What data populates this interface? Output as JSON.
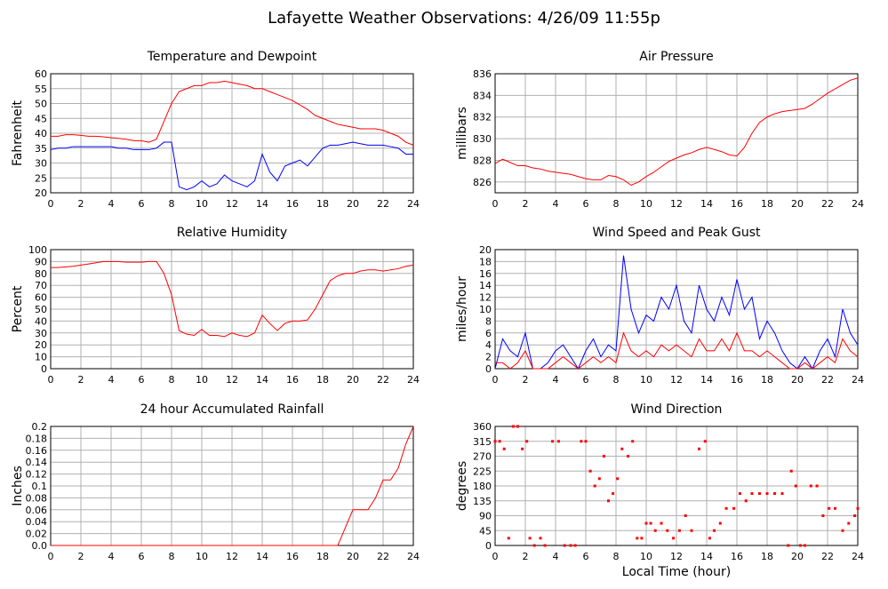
{
  "title": "Lafayette Weather Observations: 4/26/09 11:55p",
  "chart_data": [
    {
      "type": "line",
      "title": "Temperature and Dewpoint",
      "ylabel": "Fahrenheit",
      "x": [
        0,
        0.5,
        1,
        1.5,
        2,
        2.5,
        3,
        3.5,
        4,
        4.5,
        5,
        5.5,
        6,
        6.5,
        7,
        7.5,
        8,
        8.5,
        9,
        9.5,
        10,
        10.5,
        11,
        11.5,
        12,
        12.5,
        13,
        13.5,
        14,
        14.5,
        15,
        15.5,
        16,
        16.5,
        17,
        17.5,
        18,
        18.5,
        19,
        19.5,
        20,
        20.5,
        21,
        21.5,
        22,
        22.5,
        23,
        23.5,
        24
      ],
      "series": [
        {
          "color": "#ff0000",
          "values": [
            39,
            39,
            39.5,
            39.5,
            39.3,
            39,
            39,
            38.8,
            38.5,
            38.3,
            38,
            37.5,
            37.5,
            37,
            38,
            44,
            50,
            54,
            55,
            56,
            56,
            57,
            57,
            57.5,
            57,
            56.5,
            56,
            55,
            55,
            54,
            53,
            52,
            51,
            49.5,
            48,
            46,
            45,
            44,
            43,
            42.5,
            42,
            41.5,
            41.5,
            41.5,
            41,
            40,
            39,
            37,
            36
          ]
        },
        {
          "color": "#0000ff",
          "values": [
            34.5,
            35,
            35,
            35.5,
            35.5,
            35.5,
            35.5,
            35.5,
            35.5,
            35,
            35,
            34.5,
            34.5,
            34.5,
            35,
            37,
            37,
            22,
            21,
            22,
            24,
            22,
            23,
            26,
            24,
            23,
            22,
            24,
            33,
            27,
            24,
            29,
            30,
            31,
            29,
            32,
            35,
            36,
            36,
            36.5,
            37,
            36.5,
            36,
            36,
            36,
            35.5,
            35,
            33,
            33
          ]
        }
      ],
      "xlim": [
        0,
        24
      ],
      "xticks": [
        0,
        2,
        4,
        6,
        8,
        10,
        12,
        14,
        16,
        18,
        20,
        22,
        24
      ],
      "ylim": [
        20,
        60
      ],
      "yticks": [
        20,
        25,
        30,
        35,
        40,
        45,
        50,
        55,
        60
      ],
      "grid": true
    },
    {
      "type": "line",
      "title": "Air Pressure",
      "ylabel": "millibars",
      "x": [
        0,
        0.5,
        1,
        1.5,
        2,
        2.5,
        3,
        3.5,
        4,
        4.5,
        5,
        5.5,
        6,
        6.5,
        7,
        7.5,
        8,
        8.5,
        9,
        9.5,
        10,
        10.5,
        11,
        11.5,
        12,
        12.5,
        13,
        13.5,
        14,
        14.5,
        15,
        15.5,
        16,
        16.5,
        17,
        17.5,
        18,
        18.5,
        19,
        19.5,
        20,
        20.5,
        21,
        21.5,
        22,
        22.5,
        23,
        23.5,
        24
      ],
      "series": [
        {
          "color": "#ff0000",
          "values": [
            827.7,
            828.1,
            827.8,
            827.5,
            827.5,
            827.3,
            827.2,
            827.0,
            826.9,
            826.8,
            826.7,
            826.5,
            826.3,
            826.2,
            826.2,
            826.6,
            826.5,
            826.2,
            825.7,
            826.0,
            826.5,
            826.9,
            827.4,
            827.9,
            828.2,
            828.5,
            828.7,
            829.0,
            829.2,
            829.0,
            828.8,
            828.5,
            828.4,
            829.2,
            830.5,
            831.5,
            832.0,
            832.3,
            832.5,
            832.6,
            832.7,
            832.8,
            833.2,
            833.7,
            834.2,
            834.6,
            835.0,
            835.4,
            835.6
          ]
        }
      ],
      "xlim": [
        0,
        24
      ],
      "xticks": [
        0,
        2,
        4,
        6,
        8,
        10,
        12,
        14,
        16,
        18,
        20,
        22,
        24
      ],
      "ylim": [
        825,
        836
      ],
      "yticks": [
        826,
        828,
        830,
        832,
        834,
        836
      ],
      "grid": true
    },
    {
      "type": "line",
      "title": "Relative Humidity",
      "ylabel": "Percent",
      "x": [
        0,
        0.5,
        1,
        1.5,
        2,
        2.5,
        3,
        3.5,
        4,
        4.5,
        5,
        5.5,
        6,
        6.5,
        7,
        7.5,
        8,
        8.5,
        9,
        9.5,
        10,
        10.5,
        11,
        11.5,
        12,
        12.5,
        13,
        13.5,
        14,
        14.5,
        15,
        15.5,
        16,
        16.5,
        17,
        17.5,
        18,
        18.5,
        19,
        19.5,
        20,
        20.5,
        21,
        21.5,
        22,
        22.5,
        23,
        23.5,
        24
      ],
      "series": [
        {
          "color": "#ff0000",
          "values": [
            85,
            85,
            85.5,
            86,
            87,
            88,
            89,
            90,
            90,
            90,
            89.5,
            89.5,
            89.5,
            90,
            90,
            80,
            62,
            32,
            29,
            28,
            33,
            28,
            28,
            27,
            30,
            28,
            27,
            30,
            45,
            38,
            32,
            38,
            40,
            40,
            41,
            50,
            62,
            74,
            78,
            80,
            80,
            82,
            83,
            83,
            82,
            83,
            84,
            86,
            87
          ]
        }
      ],
      "xlim": [
        0,
        24
      ],
      "xticks": [
        0,
        2,
        4,
        6,
        8,
        10,
        12,
        14,
        16,
        18,
        20,
        22,
        24
      ],
      "ylim": [
        0,
        100
      ],
      "yticks": [
        0,
        10,
        20,
        30,
        40,
        50,
        60,
        70,
        80,
        90,
        100
      ],
      "grid": true
    },
    {
      "type": "line",
      "title": "Wind Speed and Peak Gust",
      "ylabel": "miles/hour",
      "x": [
        0,
        0.5,
        1,
        1.5,
        2,
        2.5,
        3,
        3.5,
        4,
        4.5,
        5,
        5.5,
        6,
        6.5,
        7,
        7.5,
        8,
        8.5,
        9,
        9.5,
        10,
        10.5,
        11,
        11.5,
        12,
        12.5,
        13,
        13.5,
        14,
        14.5,
        15,
        15.5,
        16,
        16.5,
        17,
        17.5,
        18,
        18.5,
        19,
        19.5,
        20,
        20.5,
        21,
        21.5,
        22,
        22.5,
        23,
        23.5,
        24
      ],
      "series": [
        {
          "color": "#0000ff",
          "values": [
            0,
            5,
            3,
            2,
            6,
            0,
            0,
            1,
            3,
            4,
            2,
            0,
            3,
            5,
            2,
            4,
            3,
            19,
            10,
            6,
            9,
            8,
            12,
            10,
            14,
            8,
            6,
            14,
            10,
            8,
            12,
            9,
            15,
            10,
            12,
            5,
            8,
            6,
            3,
            1,
            0,
            2,
            0,
            3,
            5,
            2,
            10,
            6,
            4
          ]
        },
        {
          "color": "#ff0000",
          "values": [
            1,
            1,
            0,
            1,
            3,
            0,
            0,
            0,
            1,
            2,
            1,
            0,
            1,
            2,
            1,
            2,
            1,
            6,
            3,
            2,
            3,
            2,
            4,
            3,
            4,
            3,
            2,
            5,
            3,
            3,
            5,
            3,
            6,
            3,
            3,
            2,
            3,
            2,
            1,
            0,
            0,
            1,
            0,
            1,
            2,
            1,
            5,
            3,
            2
          ]
        }
      ],
      "xlim": [
        0,
        24
      ],
      "xticks": [
        0,
        2,
        4,
        6,
        8,
        10,
        12,
        14,
        16,
        18,
        20,
        22,
        24
      ],
      "ylim": [
        0,
        20
      ],
      "yticks": [
        0,
        2,
        4,
        6,
        8,
        10,
        12,
        14,
        16,
        18,
        20
      ],
      "grid": true
    },
    {
      "type": "line",
      "title": "24 hour Accumulated Rainfall",
      "ylabel": "Inches",
      "x": [
        0,
        0.5,
        1,
        1.5,
        2,
        2.5,
        3,
        3.5,
        4,
        4.5,
        5,
        5.5,
        6,
        6.5,
        7,
        7.5,
        8,
        8.5,
        9,
        9.5,
        10,
        10.5,
        11,
        11.5,
        12,
        12.5,
        13,
        13.5,
        14,
        14.5,
        15,
        15.5,
        16,
        16.5,
        17,
        17.5,
        18,
        18.5,
        19,
        19.5,
        20,
        20.5,
        21,
        21.5,
        22,
        22.5,
        23,
        23.5,
        24
      ],
      "series": [
        {
          "color": "#ff0000",
          "values": [
            0,
            0,
            0,
            0,
            0,
            0,
            0,
            0,
            0,
            0,
            0,
            0,
            0,
            0,
            0,
            0,
            0,
            0,
            0,
            0,
            0,
            0,
            0,
            0,
            0,
            0,
            0,
            0,
            0,
            0,
            0,
            0,
            0,
            0,
            0,
            0,
            0,
            0,
            0,
            0.03,
            0.06,
            0.06,
            0.06,
            0.08,
            0.11,
            0.11,
            0.13,
            0.17,
            0.2
          ]
        }
      ],
      "xlim": [
        0,
        24
      ],
      "xticks": [
        0,
        2,
        4,
        6,
        8,
        10,
        12,
        14,
        16,
        18,
        20,
        22,
        24
      ],
      "ylim": [
        0,
        0.2
      ],
      "yticks": [
        {
          "value": 0,
          "label": "0.0"
        },
        0.02,
        0.04,
        0.06,
        0.08,
        0.1,
        0.12,
        0.14,
        0.16,
        0.18,
        0.2
      ],
      "grid": true
    },
    {
      "type": "scatter",
      "title": "Wind Direction",
      "ylabel": "degrees",
      "xlabel": "Local Time (hour)",
      "x": [
        0,
        0.3,
        0.6,
        0.9,
        1.2,
        1.5,
        1.8,
        2.1,
        2.3,
        2.6,
        3,
        3.3,
        3.8,
        4.2,
        4.6,
        5,
        5.3,
        5.7,
        6,
        6.3,
        6.6,
        6.9,
        7.2,
        7.5,
        7.8,
        8.1,
        8.4,
        8.8,
        9.1,
        9.4,
        9.7,
        10,
        10.3,
        10.6,
        11,
        11.4,
        11.8,
        12.2,
        12.6,
        13,
        13.5,
        13.9,
        14.2,
        14.5,
        14.9,
        15.3,
        15.8,
        16.2,
        16.6,
        17,
        17.5,
        18,
        18.5,
        19,
        19.4,
        19.6,
        19.9,
        20.2,
        20.5,
        20.9,
        21.3,
        21.7,
        22.1,
        22.5,
        23,
        23.4,
        23.8,
        24
      ],
      "series": [
        {
          "color": "#ff0000",
          "values": [
            315,
            315,
            292,
            22,
            360,
            360,
            292,
            315,
            22,
            0,
            22,
            0,
            315,
            315,
            0,
            0,
            0,
            315,
            315,
            225,
            180,
            202,
            270,
            135,
            157,
            202,
            292,
            270,
            315,
            22,
            22,
            67,
            67,
            45,
            67,
            45,
            22,
            45,
            90,
            45,
            292,
            315,
            22,
            45,
            67,
            112,
            112,
            157,
            135,
            157,
            157,
            157,
            157,
            157,
            0,
            225,
            180,
            0,
            0,
            180,
            180,
            90,
            112,
            112,
            45,
            67,
            90,
            112
          ]
        }
      ],
      "xlim": [
        0,
        24
      ],
      "xticks": [
        0,
        2,
        4,
        6,
        8,
        10,
        12,
        14,
        16,
        18,
        20,
        22,
        24
      ],
      "ylim": [
        0,
        360
      ],
      "yticks": [
        0,
        45,
        90,
        135,
        180,
        225,
        270,
        315,
        360
      ],
      "grid": true
    }
  ]
}
